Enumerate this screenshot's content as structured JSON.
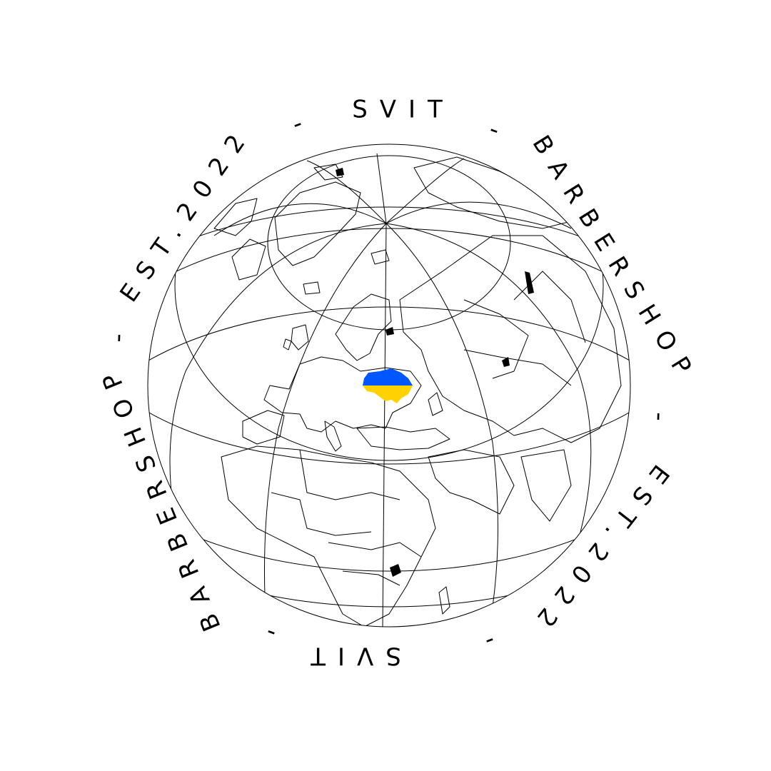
{
  "ring": {
    "segments": [
      {
        "text": "SVIT",
        "angle": 0
      },
      {
        "text": "-",
        "angle": 30
      },
      {
        "text": "BARBERSHOP",
        "angle": 60
      },
      {
        "text": "-",
        "angle": 110
      },
      {
        "text": "EST.2022",
        "angle": 145
      },
      {
        "text": "-",
        "angle": 210
      },
      {
        "text": "SVIT",
        "angle": 180
      },
      {
        "text": "-",
        "angle": 150
      },
      {
        "text": "BARBERSHOP",
        "angle": 240
      },
      {
        "text": "-",
        "angle": 290
      },
      {
        "text": "EST.2022",
        "angle": 325
      },
      {
        "text": "-",
        "angle": 330
      }
    ]
  },
  "colors": {
    "ink": "#000000",
    "background": "#ffffff",
    "flag_top": "#0057FF",
    "flag_bottom": "#FFD200"
  },
  "icons": {
    "globe": "globe-icon",
    "flag": "ukraine-flag-map-icon"
  }
}
